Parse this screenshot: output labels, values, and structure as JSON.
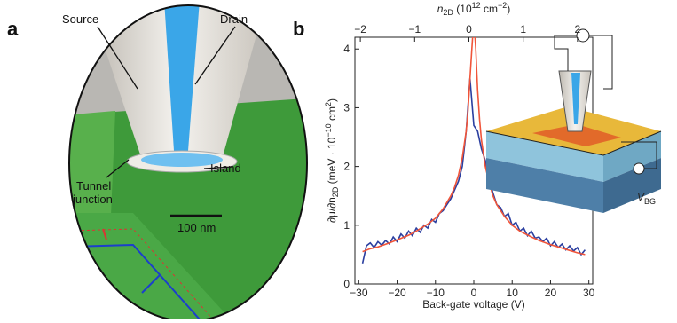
{
  "panel_a": {
    "label": "a",
    "source": "Source",
    "drain": "Drain",
    "island": "Island",
    "tunnel_junction": [
      "Tunnel",
      "junction"
    ],
    "scale_bar": "100 nm"
  },
  "panel_b": {
    "label": "b",
    "inset_label": [
      "V",
      "BG"
    ]
  },
  "chart_data": {
    "type": "line",
    "xlabel": "Back-gate voltage (V)",
    "x2label": [
      "n",
      "2D",
      " (10",
      "12",
      " cm",
      "−2",
      ")"
    ],
    "ylabel": [
      "∂μ/∂n",
      "2D",
      " (meV · 10",
      "−10",
      " cm",
      "2",
      ")"
    ],
    "xlim": [
      -31,
      31
    ],
    "xticks": [
      {
        "value": -30,
        "label": "−30"
      },
      {
        "value": -20,
        "label": "−20"
      },
      {
        "value": -10,
        "label": "−10"
      },
      0,
      10,
      20,
      30
    ],
    "x2lim": [
      -2.1,
      2.28
    ],
    "x2ticks": [
      {
        "value": -2,
        "label": "−2"
      },
      {
        "value": -1,
        "label": "−1"
      },
      0,
      1,
      2
    ],
    "ylim": [
      0,
      4.2
    ],
    "yticks": [
      0,
      1,
      2,
      3,
      4
    ],
    "series": [
      {
        "color": "#2b3fa0",
        "x": [
          -29,
          -28,
          -27,
          -26,
          -25,
          -24,
          -23,
          -22,
          -21,
          -20,
          -19,
          -18,
          -17,
          -16,
          -15,
          -14,
          -13,
          -12,
          -11,
          -10,
          -9,
          -8,
          -7,
          -6,
          -5,
          -4,
          -3,
          -2,
          -1,
          0,
          1,
          2,
          3,
          4,
          5,
          6,
          7,
          8,
          9,
          10,
          11,
          12,
          13,
          14,
          15,
          16,
          17,
          18,
          19,
          20,
          21,
          22,
          23,
          24,
          25,
          26,
          27,
          28,
          29
        ],
        "values": [
          0.35,
          0.65,
          0.7,
          0.62,
          0.72,
          0.66,
          0.74,
          0.68,
          0.8,
          0.72,
          0.85,
          0.78,
          0.9,
          0.82,
          0.95,
          0.88,
          1.0,
          0.95,
          1.1,
          1.05,
          1.2,
          1.25,
          1.35,
          1.45,
          1.6,
          1.75,
          2.0,
          2.6,
          3.5,
          2.7,
          2.6,
          2.3,
          2.1,
          1.75,
          1.55,
          1.35,
          1.3,
          1.15,
          1.2,
          1.0,
          1.05,
          0.9,
          0.95,
          0.82,
          0.9,
          0.78,
          0.8,
          0.72,
          0.78,
          0.65,
          0.72,
          0.62,
          0.68,
          0.58,
          0.65,
          0.56,
          0.62,
          0.5,
          0.58
        ]
      },
      {
        "color": "#f0553a",
        "x": [
          -29,
          -27,
          -25,
          -22,
          -20,
          -17,
          -15,
          -12,
          -10,
          -8,
          -6,
          -5,
          -4,
          -3,
          -2,
          -1.5,
          -1,
          -0.5,
          -0.2,
          0.2,
          0.5,
          1,
          1.5,
          2,
          3,
          4,
          5,
          6,
          8,
          10,
          12,
          15,
          17,
          20,
          22,
          25,
          27,
          29
        ],
        "values": [
          0.55,
          0.6,
          0.63,
          0.7,
          0.75,
          0.83,
          0.9,
          1.02,
          1.12,
          1.28,
          1.5,
          1.65,
          1.85,
          2.15,
          2.6,
          2.95,
          3.5,
          4.0,
          4.3,
          4.3,
          4.0,
          3.3,
          2.8,
          2.45,
          2.0,
          1.72,
          1.5,
          1.35,
          1.15,
          1.0,
          0.9,
          0.8,
          0.74,
          0.67,
          0.63,
          0.57,
          0.53,
          0.5
        ]
      }
    ]
  }
}
